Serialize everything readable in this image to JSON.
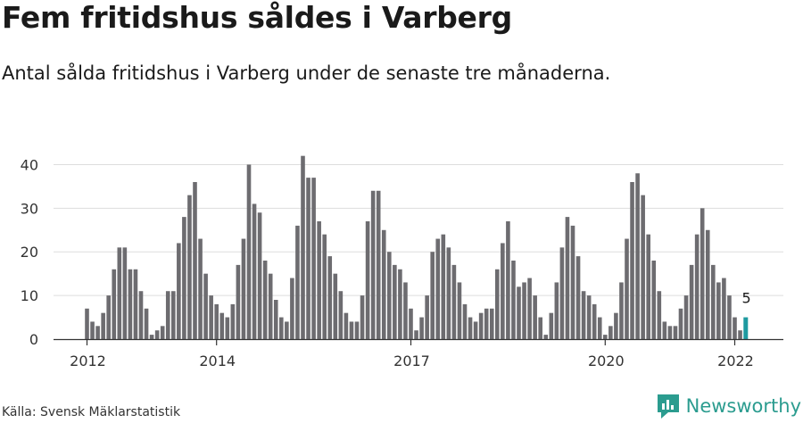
{
  "title": "Fem fritidshus såldes i Varberg",
  "subtitle": "Antal sålda fritidshus i Varberg under de senaste tre månaderna.",
  "source": "Källa: Svensk Mäklarstatistik",
  "brand": "Newsworthy",
  "colors": {
    "bar": "#6d6c70",
    "highlight": "#1e9aa0",
    "grid": "#dddddd",
    "axis": "#333333",
    "brand": "#2b9c8f"
  },
  "chart_data": {
    "type": "bar",
    "title": "Fem fritidshus såldes i Varberg",
    "xlabel": "",
    "ylabel": "",
    "ylim": [
      0,
      45
    ],
    "yticks": [
      0,
      10,
      20,
      30,
      40
    ],
    "xticks": [
      {
        "label": "2012",
        "index": 0
      },
      {
        "label": "2014",
        "index": 24
      },
      {
        "label": "2017",
        "index": 60
      },
      {
        "label": "2020",
        "index": 96
      },
      {
        "label": "2022",
        "index": 120
      }
    ],
    "grid": true,
    "values": [
      7,
      4,
      3,
      6,
      10,
      16,
      21,
      21,
      16,
      16,
      11,
      7,
      1,
      2,
      3,
      11,
      11,
      22,
      28,
      33,
      36,
      23,
      15,
      10,
      8,
      6,
      5,
      8,
      17,
      23,
      40,
      31,
      29,
      18,
      15,
      9,
      5,
      4,
      14,
      26,
      42,
      37,
      37,
      27,
      24,
      19,
      15,
      11,
      6,
      4,
      4,
      10,
      27,
      34,
      34,
      25,
      20,
      17,
      16,
      13,
      7,
      2,
      5,
      10,
      20,
      23,
      24,
      21,
      17,
      13,
      8,
      5,
      4,
      6,
      7,
      7,
      16,
      22,
      27,
      18,
      12,
      13,
      14,
      10,
      5,
      1,
      6,
      13,
      21,
      28,
      26,
      19,
      11,
      10,
      8,
      5,
      1,
      3,
      6,
      13,
      23,
      36,
      38,
      33,
      24,
      18,
      11,
      4,
      3,
      3,
      7,
      10,
      17,
      24,
      30,
      25,
      17,
      13,
      14,
      10,
      5,
      2,
      5
    ],
    "highlight_index": 122,
    "annotation": {
      "text": "5",
      "index": 122
    }
  }
}
